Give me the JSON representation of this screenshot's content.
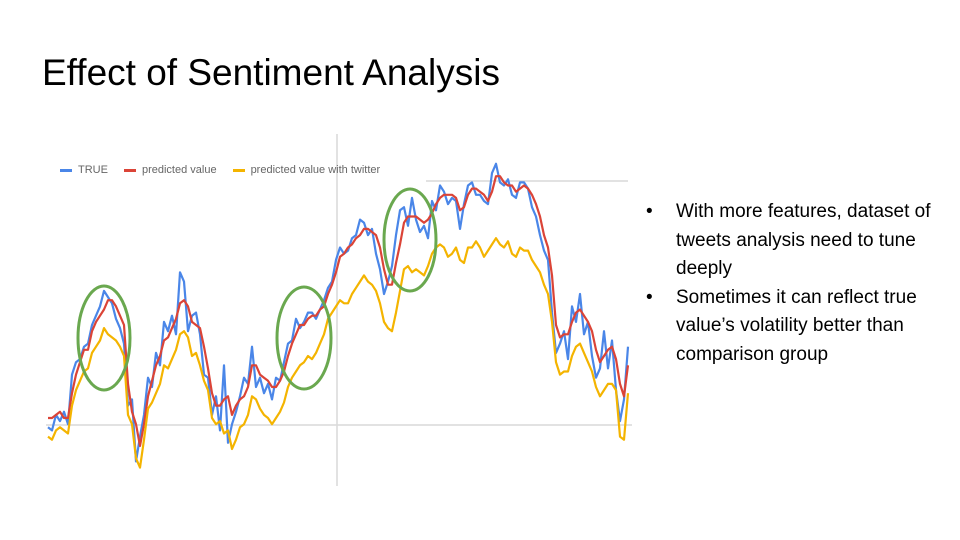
{
  "slide": {
    "title": "Effect of Sentiment Analysis",
    "bullets": [
      "With more features, dataset of tweets analysis need to tune deeply",
      "Sometimes it can reflect true value’s volatility better than comparison group"
    ]
  },
  "colors": {
    "true": "#4a86e8",
    "predicted": "#db4437",
    "twitter": "#f4b400",
    "highlight": "#6aa84f",
    "gridline": "#d9d9d9"
  },
  "chart_data": {
    "type": "line",
    "title": "",
    "xlabel": "",
    "ylabel": "",
    "legend_position": "top-left",
    "grid": true,
    "x": [
      0,
      1,
      2,
      3,
      4,
      5,
      6,
      7,
      8,
      9,
      10,
      11,
      12,
      13,
      14,
      15,
      16,
      17,
      18,
      19,
      20,
      21,
      22,
      23,
      24,
      25,
      26,
      27,
      28,
      29,
      30,
      31,
      32,
      33,
      34,
      35,
      36,
      37,
      38,
      39,
      40,
      41,
      42,
      43,
      44,
      45,
      46,
      47,
      48,
      49,
      50,
      51,
      52,
      53,
      54,
      55,
      56,
      57,
      58,
      59,
      60,
      61,
      62,
      63,
      64,
      65,
      66,
      67,
      68,
      69,
      70,
      71,
      72,
      73,
      74,
      75,
      76,
      77,
      78,
      79,
      80,
      81,
      82,
      83,
      84,
      85,
      86,
      87,
      88,
      89,
      90,
      91,
      92,
      93,
      94,
      95,
      96,
      97,
      98,
      99,
      100,
      101,
      102,
      103,
      104,
      105,
      106,
      107,
      108,
      109,
      110,
      111,
      112,
      113,
      114,
      115,
      116,
      117,
      118,
      119,
      120,
      121,
      122,
      123,
      124,
      125,
      126,
      127,
      128,
      129,
      130,
      131,
      132,
      133,
      134,
      135,
      136,
      137,
      138,
      139,
      140,
      141,
      142,
      143,
      144,
      145
    ],
    "ylim": [
      0,
      100
    ],
    "series": [
      {
        "name": "TRUE",
        "values": [
          17,
          16,
          21,
          19,
          22,
          18,
          34,
          38,
          39,
          43,
          44,
          50,
          53,
          56,
          61,
          59,
          57,
          52,
          49,
          44,
          24,
          26,
          6,
          14,
          21,
          33,
          30,
          41,
          37,
          51,
          48,
          53,
          47,
          67,
          64,
          48,
          53,
          54,
          47,
          34,
          33,
          21,
          27,
          16,
          37,
          12,
          18,
          22,
          27,
          33,
          31,
          43,
          30,
          33,
          28,
          31,
          26,
          33,
          32,
          38,
          44,
          45,
          52,
          49,
          51,
          54,
          54,
          52,
          55,
          58,
          62,
          64,
          71,
          75,
          73,
          74,
          78,
          79,
          84,
          83,
          79,
          81,
          73,
          68,
          60,
          64,
          69,
          79,
          87,
          88,
          82,
          91,
          84,
          80,
          82,
          78,
          90,
          87,
          95,
          93,
          89,
          91,
          90,
          81,
          89,
          95,
          96,
          92,
          92,
          90,
          89,
          99,
          102,
          96,
          95,
          97,
          92,
          91,
          96,
          96,
          94,
          88,
          85,
          79,
          74,
          71,
          54,
          41,
          44,
          48,
          39,
          56,
          51,
          60,
          47,
          51,
          40,
          33,
          36,
          48,
          36,
          45,
          29,
          19,
          26,
          43
        ]
      },
      {
        "name": "predicted value",
        "values": [
          20,
          20,
          21,
          22,
          20,
          20,
          28,
          34,
          38,
          42,
          42,
          48,
          51,
          53,
          55,
          58,
          58,
          56,
          53,
          50,
          31,
          22,
          18,
          11,
          18,
          27,
          32,
          37,
          40,
          45,
          46,
          49,
          52,
          57,
          58,
          56,
          51,
          50,
          49,
          43,
          36,
          28,
          24,
          24,
          26,
          27,
          21,
          24,
          26,
          27,
          30,
          37,
          37,
          34,
          33,
          32,
          30,
          30,
          32,
          35,
          40,
          44,
          47,
          50,
          50,
          52,
          53,
          53,
          55,
          56,
          60,
          63,
          67,
          72,
          73,
          75,
          76,
          78,
          79,
          81,
          81,
          80,
          79,
          75,
          68,
          63,
          63,
          70,
          76,
          83,
          85,
          85,
          85,
          84,
          83,
          84,
          86,
          89,
          91,
          92,
          92,
          92,
          91,
          87,
          88,
          92,
          94,
          94,
          93,
          92,
          90,
          93,
          98,
          98,
          96,
          95,
          95,
          93,
          94,
          95,
          94,
          92,
          89,
          85,
          79,
          75,
          66,
          50,
          46,
          47,
          47,
          51,
          54,
          55,
          53,
          51,
          48,
          42,
          38,
          40,
          42,
          43,
          39,
          31,
          27,
          37
        ]
      },
      {
        "name": "predicted value with twitter",
        "values": [
          14,
          13,
          16,
          17,
          16,
          15,
          24,
          29,
          32,
          35,
          36,
          41,
          43,
          45,
          49,
          47,
          46,
          45,
          43,
          40,
          21,
          18,
          7,
          4,
          13,
          23,
          25,
          28,
          31,
          37,
          36,
          39,
          42,
          47,
          48,
          46,
          40,
          41,
          37,
          32,
          29,
          20,
          18,
          19,
          15,
          16,
          10,
          13,
          17,
          18,
          21,
          27,
          26,
          23,
          21,
          20,
          18,
          20,
          22,
          25,
          30,
          33,
          35,
          37,
          38,
          40,
          39,
          41,
          44,
          47,
          52,
          54,
          56,
          58,
          57,
          57,
          60,
          62,
          64,
          66,
          64,
          63,
          61,
          57,
          51,
          49,
          48,
          54,
          61,
          68,
          69,
          67,
          68,
          67,
          66,
          69,
          73,
          75,
          76,
          75,
          72,
          73,
          75,
          71,
          70,
          75,
          75,
          77,
          75,
          72,
          74,
          76,
          78,
          76,
          75,
          77,
          73,
          72,
          75,
          74,
          74,
          71,
          69,
          67,
          63,
          60,
          51,
          38,
          34,
          35,
          35,
          40,
          43,
          44,
          41,
          38,
          35,
          30,
          27,
          29,
          31,
          31,
          29,
          14,
          13,
          28
        ]
      }
    ]
  }
}
